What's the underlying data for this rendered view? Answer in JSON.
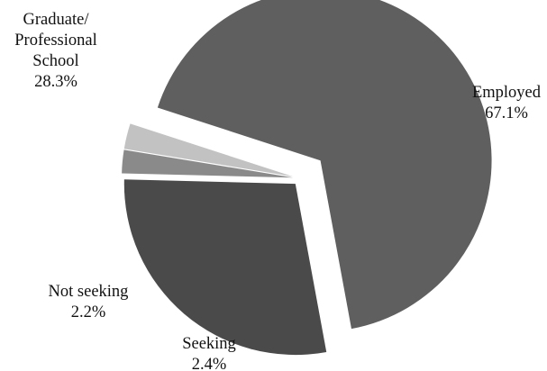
{
  "chart_data": {
    "type": "pie",
    "title": "",
    "series": [
      {
        "values": [
          67.1,
          28.3,
          2.2,
          2.4
        ],
        "categories": [
          "Employed",
          "Graduate/ Professional School",
          "Not seeking",
          "Seeking"
        ]
      }
    ],
    "slices": [
      {
        "label_lines": [
          "Employed"
        ],
        "value_text": "67.1%",
        "value": 67.1,
        "color": "#5f5f5f"
      },
      {
        "label_lines": [
          "Graduate/",
          "Professional",
          "School"
        ],
        "value_text": "28.3%",
        "value": 28.3,
        "color": "#4a4a4a"
      },
      {
        "label_lines": [
          "Not seeking"
        ],
        "value_text": "2.2%",
        "value": 2.2,
        "color": "#8a8a8a"
      },
      {
        "label_lines": [
          "Seeking"
        ],
        "value_text": "2.4%",
        "value": 2.4,
        "color": "#c2c2c2"
      }
    ],
    "exploded": true,
    "legend": "none",
    "background": "#ffffff"
  }
}
